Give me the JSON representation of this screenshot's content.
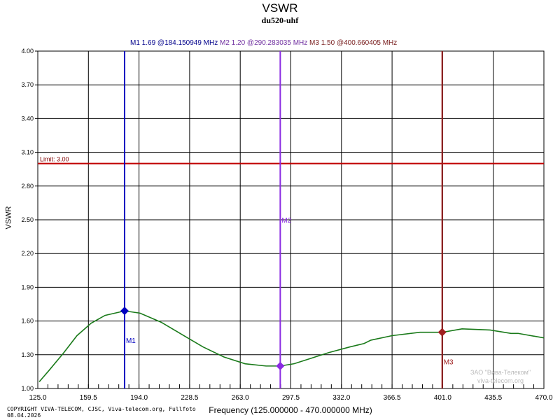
{
  "chart_data": {
    "type": "line",
    "title": "VSWR",
    "subtitle": "du520-uhf",
    "xlabel": "Frequency (125.000000 - 470.000000 MHz)",
    "ylabel": "VSWR",
    "xlim": [
      125,
      470
    ],
    "ylim": [
      1.0,
      4.0
    ],
    "grid": true,
    "xticks": [
      "125.0",
      "159.5",
      "194.0",
      "228.5",
      "263.0",
      "297.5",
      "332.0",
      "366.5",
      "401.0",
      "435.5",
      "470.0"
    ],
    "yticks": [
      "1.00",
      "1.30",
      "1.60",
      "1.90",
      "2.20",
      "2.50",
      "2.80",
      "3.10",
      "3.40",
      "3.70",
      "4.00"
    ],
    "limit": {
      "label": "Limit: 3.00",
      "value": 3.0,
      "color": "#c00000"
    },
    "series": [
      {
        "color": "#1a7a1a",
        "x": [
          126,
          132.6,
          142.2,
          151.7,
          161.3,
          170.8,
          184.2,
          194.7,
          209,
          223.3,
          237.6,
          251.9,
          266.3,
          280.6,
          290.1,
          294.9,
          299.7,
          309.2,
          323.5,
          337.8,
          347.4,
          352.1,
          366.5,
          385.5,
          400.8,
          414.2,
          433.3,
          447.6,
          452.4,
          470
        ],
        "y": [
          1.06,
          1.16,
          1.31,
          1.47,
          1.58,
          1.65,
          1.69,
          1.67,
          1.59,
          1.48,
          1.37,
          1.28,
          1.22,
          1.2,
          1.2,
          1.21,
          1.22,
          1.26,
          1.32,
          1.37,
          1.4,
          1.43,
          1.47,
          1.5,
          1.5,
          1.53,
          1.52,
          1.49,
          1.49,
          1.45
        ]
      }
    ],
    "markers": [
      {
        "name": "M1",
        "freq": 184.150949,
        "value": 1.69,
        "color": "#0000c0",
        "readout": "M1   1.69 @184.150949 MHz"
      },
      {
        "name": "M2",
        "freq": 290.283035,
        "value": 1.2,
        "color": "#8a2be2",
        "readout": "M2   1.20 @290.283035 MHz"
      },
      {
        "name": "M3",
        "freq": 400.660405,
        "value": 1.5,
        "color": "#a02020",
        "readout": "M3   1.50 @400.660405 MHz"
      }
    ]
  },
  "footer": {
    "copyright": "COPYRIGHT VIVA-TELECOM, CJSC, Viva-telecom.org, Fullfoto",
    "date": "08.04.2026",
    "watermark_line1": "ЗАО \"Вива-Телеком\"",
    "watermark_line2": "viva-telecom.org"
  }
}
